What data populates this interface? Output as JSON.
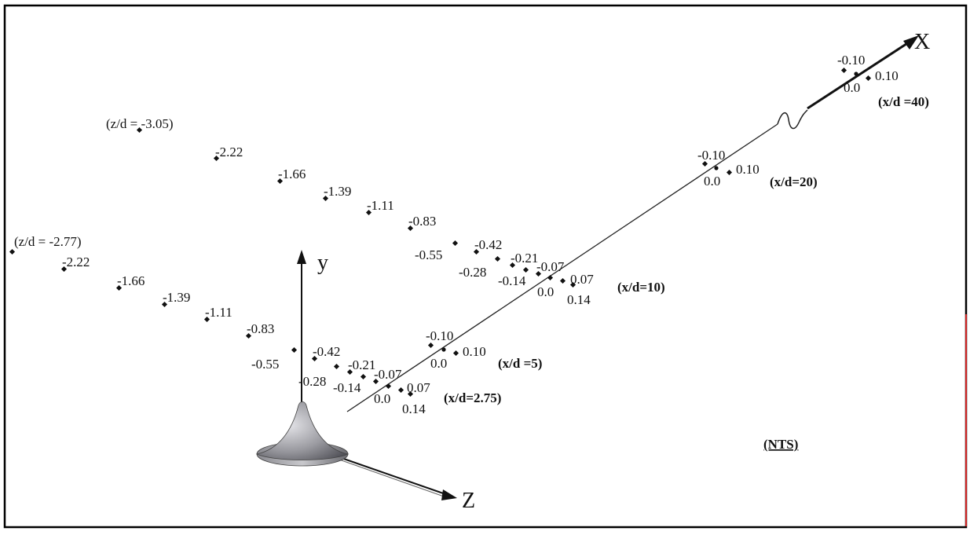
{
  "axes": {
    "x": "X",
    "y": "y",
    "z": "Z"
  },
  "note": "(NTS)",
  "series_a": [
    {
      "label": "(z/d = -3.05)",
      "z": -3.05
    },
    {
      "label": "-2.22",
      "z": -2.22
    },
    {
      "label": "-1.66",
      "z": -1.66
    },
    {
      "label": "-1.39",
      "z": -1.39
    },
    {
      "label": "-1.11",
      "z": -1.11
    },
    {
      "label": "-0.83",
      "z": -0.83
    },
    {
      "label": "-0.55",
      "z": -0.55
    },
    {
      "label": "-0.42",
      "z": -0.42
    },
    {
      "label": "-0.28",
      "z": -0.28
    },
    {
      "label": "-0.21",
      "z": -0.21
    },
    {
      "label": "-0.14",
      "z": -0.14
    },
    {
      "label": "-0.07",
      "z": -0.07
    },
    {
      "label": "0.0",
      "z": 0.0
    },
    {
      "label": "0.07",
      "z": 0.07
    },
    {
      "label": "0.14",
      "z": 0.14
    }
  ],
  "series_a_station": "(x/d=10)",
  "series_b": [
    {
      "label": "(z/d = -2.77)",
      "z": -2.77
    },
    {
      "label": "-2.22",
      "z": -2.22
    },
    {
      "label": "-1.66",
      "z": -1.66
    },
    {
      "label": "-1.39",
      "z": -1.39
    },
    {
      "label": "-1.11",
      "z": -1.11
    },
    {
      "label": "-0.83",
      "z": -0.83
    },
    {
      "label": "-0.55",
      "z": -0.55
    },
    {
      "label": "-0.42",
      "z": -0.42
    },
    {
      "label": "-0.28",
      "z": -0.28
    },
    {
      "label": "-0.21",
      "z": -0.21
    },
    {
      "label": "-0.14",
      "z": -0.14
    },
    {
      "label": "-0.07",
      "z": -0.07
    },
    {
      "label": "0.0",
      "z": 0.0
    },
    {
      "label": "0.07",
      "z": 0.07
    },
    {
      "label": "0.14",
      "z": 0.14
    }
  ],
  "series_b_station": "(x/d=2.75)",
  "station_5": {
    "title": "(x/d =5)",
    "points": [
      {
        "label": "-0.10",
        "z": -0.1
      },
      {
        "label": "0.0",
        "z": 0.0
      },
      {
        "label": "0.10",
        "z": 0.1
      }
    ]
  },
  "station_20": {
    "title": "(x/d=20)",
    "points": [
      {
        "label": "-0.10",
        "z": -0.1
      },
      {
        "label": "0.0",
        "z": 0.0
      },
      {
        "label": "0.10",
        "z": 0.1
      }
    ]
  },
  "station_40": {
    "title": "(x/d =40)",
    "points": [
      {
        "label": "-0.10",
        "z": -0.1
      },
      {
        "label": "0.0",
        "z": 0.0
      },
      {
        "label": "0.10",
        "z": 0.1
      }
    ]
  }
}
